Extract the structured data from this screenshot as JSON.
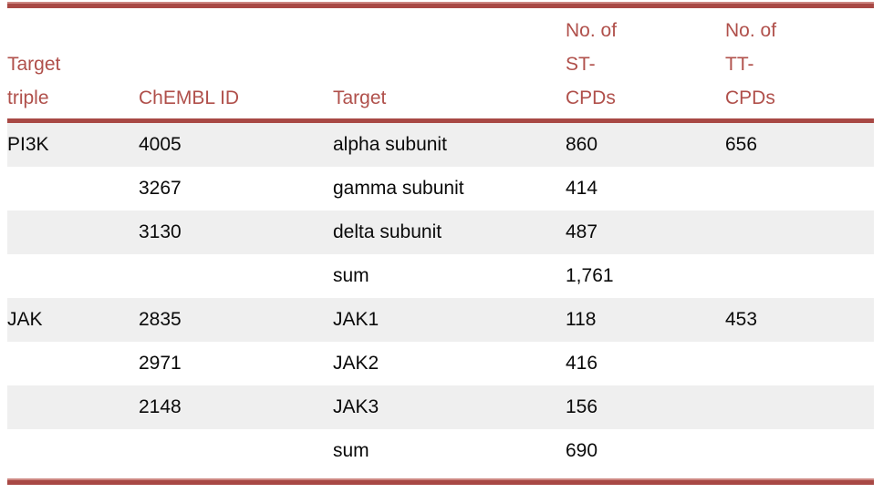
{
  "colors": {
    "accent_red": "#b0504b",
    "rule_red_dark": "#a84844",
    "rule_red_light": "#cd8782",
    "stripe_gray": "#efefef",
    "body_text": "#0a0a0a"
  },
  "table": {
    "columns": [
      {
        "id": "target-triple",
        "label": "Target\ntriple"
      },
      {
        "id": "chembl-id",
        "label": "ChEMBL ID"
      },
      {
        "id": "target",
        "label": "Target"
      },
      {
        "id": "st-cpds",
        "label": "No. of\nST-\nCPDs"
      },
      {
        "id": "tt-cpds",
        "label": "No. of\nTT-\nCPDs"
      }
    ],
    "rows": [
      [
        "PI3K",
        "4005",
        "alpha subunit",
        "860",
        "656"
      ],
      [
        "",
        "3267",
        "gamma subunit",
        "414",
        ""
      ],
      [
        "",
        "3130",
        "delta subunit",
        "487",
        ""
      ],
      [
        "",
        "",
        "sum",
        "1,761",
        ""
      ],
      [
        "JAK",
        "2835",
        "JAK1",
        "118",
        "453"
      ],
      [
        "",
        "2971",
        "JAK2",
        "416",
        ""
      ],
      [
        "",
        "2148",
        "JAK3",
        "156",
        ""
      ],
      [
        "",
        "",
        "sum",
        "690",
        ""
      ]
    ]
  },
  "chart_data": {
    "type": "table",
    "title": "",
    "columns": [
      "Target triple",
      "ChEMBL ID",
      "Target",
      "No. of ST-CPDs",
      "No. of TT-CPDs"
    ],
    "rows": [
      [
        "PI3K",
        "4005",
        "alpha subunit",
        "860",
        "656"
      ],
      [
        "",
        "3267",
        "gamma subunit",
        "414",
        ""
      ],
      [
        "",
        "3130",
        "delta subunit",
        "487",
        ""
      ],
      [
        "",
        "",
        "sum",
        "1,761",
        ""
      ],
      [
        "JAK",
        "2835",
        "JAK1",
        "118",
        "453"
      ],
      [
        "",
        "2971",
        "JAK2",
        "416",
        ""
      ],
      [
        "",
        "2148",
        "JAK3",
        "156",
        ""
      ],
      [
        "",
        "",
        "sum",
        "690",
        ""
      ]
    ]
  }
}
